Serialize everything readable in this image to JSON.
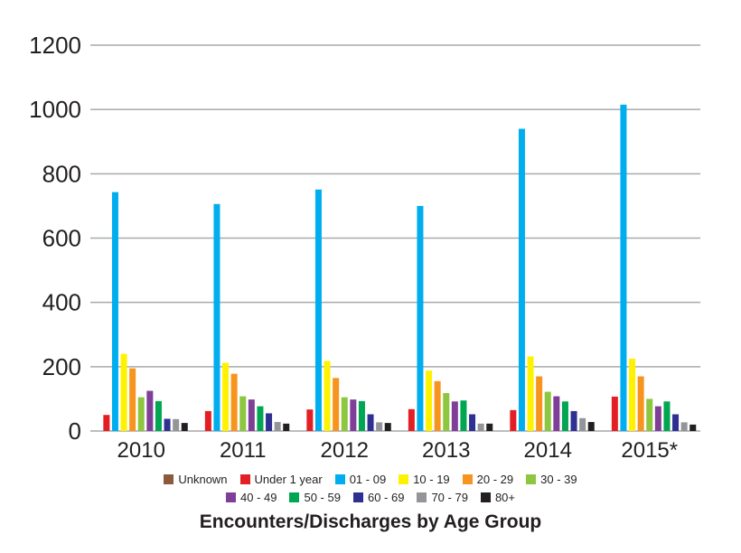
{
  "chart_data": {
    "type": "bar",
    "title": "Encounters/Discharges by Age Group",
    "xlabel": "",
    "ylabel": "",
    "ylim": [
      0,
      1200
    ],
    "yticks": [
      0,
      200,
      400,
      600,
      800,
      1000,
      1200
    ],
    "grid": true,
    "legend_position": "bottom",
    "categories": [
      "2010",
      "2011",
      "2012",
      "2013",
      "2014",
      "2015*"
    ],
    "series": [
      {
        "name": "Unknown",
        "color": "#8b5a3c",
        "values": [
          0,
          0,
          0,
          0,
          0,
          0
        ]
      },
      {
        "name": "Under 1 year",
        "color": "#e31e24",
        "values": [
          50,
          62,
          67,
          68,
          65,
          107
        ]
      },
      {
        "name": "01 - 09",
        "color": "#00aeef",
        "values": [
          743,
          706,
          751,
          700,
          940,
          1015
        ]
      },
      {
        "name": "10 - 19",
        "color": "#fff200",
        "values": [
          240,
          212,
          218,
          188,
          232,
          225
        ]
      },
      {
        "name": "20 - 29",
        "color": "#f7941d",
        "values": [
          195,
          178,
          165,
          155,
          170,
          170
        ]
      },
      {
        "name": "30 - 39",
        "color": "#8dc63f",
        "values": [
          105,
          108,
          105,
          118,
          122,
          100
        ]
      },
      {
        "name": "40 - 49",
        "color": "#7f3f98",
        "values": [
          125,
          98,
          98,
          92,
          108,
          77
        ]
      },
      {
        "name": "50 - 59",
        "color": "#00a651",
        "values": [
          93,
          77,
          93,
          95,
          92,
          92
        ]
      },
      {
        "name": "60 - 69",
        "color": "#2e3192",
        "values": [
          38,
          55,
          52,
          52,
          62,
          52
        ]
      },
      {
        "name": "70 - 79",
        "color": "#939598",
        "values": [
          37,
          28,
          27,
          23,
          40,
          27
        ]
      },
      {
        "name": "80+",
        "color": "#231f20",
        "values": [
          25,
          23,
          25,
          23,
          28,
          20
        ]
      }
    ]
  }
}
